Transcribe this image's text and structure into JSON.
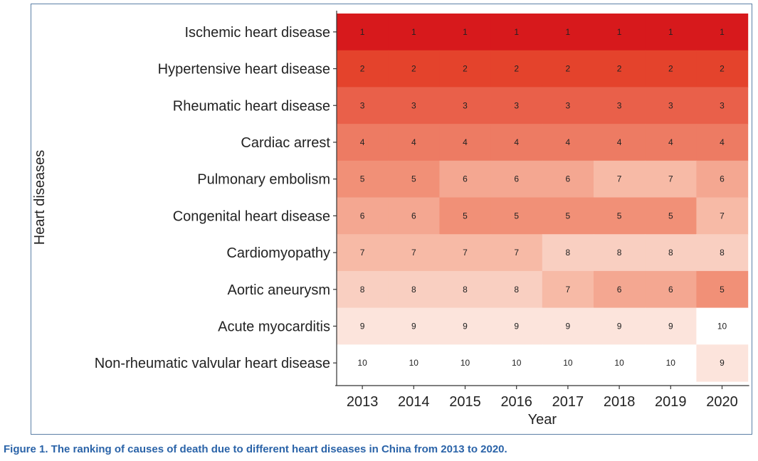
{
  "chart_data": {
    "type": "heatmap",
    "xlabel": "Year",
    "ylabel": "Heart diseases",
    "x": [
      "2013",
      "2014",
      "2015",
      "2016",
      "2017",
      "2018",
      "2019",
      "2020"
    ],
    "y": [
      "Ischemic heart disease",
      "Hypertensive heart disease",
      "Rheumatic heart disease",
      "Cardiac arrest",
      "Pulmonary embolism",
      "Congenital heart disease",
      "Cardiomyopathy",
      "Aortic aneurysm",
      "Acute myocarditis",
      "Non-rheumatic valvular heart disease"
    ],
    "values": [
      [
        1,
        1,
        1,
        1,
        1,
        1,
        1,
        1
      ],
      [
        2,
        2,
        2,
        2,
        2,
        2,
        2,
        2
      ],
      [
        3,
        3,
        3,
        3,
        3,
        3,
        3,
        3
      ],
      [
        4,
        4,
        4,
        4,
        4,
        4,
        4,
        4
      ],
      [
        5,
        5,
        6,
        6,
        6,
        7,
        7,
        6
      ],
      [
        6,
        6,
        5,
        5,
        5,
        5,
        5,
        7
      ],
      [
        7,
        7,
        7,
        7,
        8,
        8,
        8,
        8
      ],
      [
        8,
        8,
        8,
        8,
        7,
        6,
        6,
        5
      ],
      [
        9,
        9,
        9,
        9,
        9,
        9,
        9,
        10
      ],
      [
        10,
        10,
        10,
        10,
        10,
        10,
        10,
        9
      ]
    ],
    "rank_colors": {
      "1": "#d7191c",
      "2": "#e4432c",
      "3": "#e9604a",
      "4": "#ed7b63",
      "5": "#f19077",
      "6": "#f4a791",
      "7": "#f7baa6",
      "8": "#f9cfc1",
      "9": "#fce4dc",
      "10": "#ffffff"
    }
  },
  "caption": "Figure 1. The ranking of causes of death due to different heart diseases in China from 2013 to 2020."
}
